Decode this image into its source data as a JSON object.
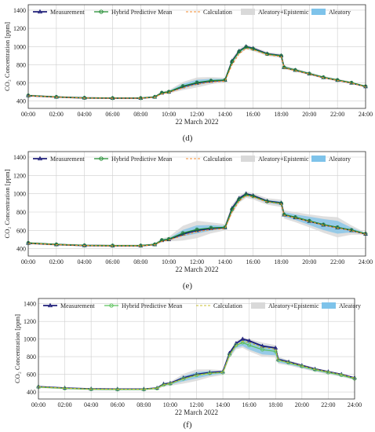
{
  "chart_data": [
    {
      "panel": "(d)",
      "type": "line",
      "xlabel": "22 March 2022",
      "ylabel": "CO₂ Concentration [ppm]",
      "xticks": [
        "00:00",
        "02:00",
        "04:00",
        "06:00",
        "08:00",
        "10:00",
        "12:00",
        "14:00",
        "16:00",
        "18:00",
        "20:00",
        "22:00",
        "24:00"
      ],
      "yticks": [
        400,
        600,
        800,
        1000,
        1200,
        1400
      ],
      "xlim": [
        0,
        24
      ],
      "ylim": [
        320,
        1460
      ],
      "grid": true,
      "legend": "top",
      "x": [
        0,
        2,
        4,
        6,
        8,
        9,
        9.5,
        10,
        11,
        12,
        13,
        14,
        14.5,
        15,
        15.5,
        16,
        17,
        18,
        18.2,
        19,
        20,
        21,
        22,
        23,
        24
      ],
      "series": [
        {
          "name": "Measurement",
          "values": [
            460,
            445,
            435,
            432,
            432,
            445,
            490,
            500,
            560,
            600,
            620,
            630,
            840,
            950,
            1000,
            980,
            920,
            900,
            770,
            740,
            700,
            660,
            630,
            600,
            560
          ]
        },
        {
          "name": "Hybrid Predictive Mean",
          "values": [
            462,
            446,
            436,
            433,
            433,
            446,
            492,
            502,
            565,
            605,
            625,
            632,
            835,
            945,
            995,
            975,
            918,
            898,
            772,
            742,
            702,
            662,
            632,
            602,
            562
          ]
        },
        {
          "name": "Calculation",
          "values": [
            458,
            444,
            434,
            431,
            431,
            443,
            480,
            495,
            545,
            585,
            610,
            620,
            800,
            920,
            980,
            965,
            910,
            890,
            765,
            735,
            697,
            657,
            627,
            597,
            557
          ]
        }
      ],
      "bands": [
        {
          "name": "Aleatory+Epistemic",
          "color": "#d9d9d9",
          "half_width": [
            10,
            10,
            10,
            10,
            10,
            10,
            14,
            18,
            45,
            55,
            40,
            25,
            35,
            30,
            25,
            25,
            22,
            22,
            20,
            18,
            16,
            15,
            14,
            12,
            10
          ]
        },
        {
          "name": "Aleatory",
          "color": "#7ec3ea",
          "half_width": [
            4,
            4,
            4,
            4,
            4,
            4,
            6,
            8,
            25,
            30,
            20,
            12,
            18,
            15,
            12,
            12,
            10,
            10,
            9,
            8,
            7,
            7,
            6,
            5,
            4
          ]
        }
      ]
    },
    {
      "panel": "(e)",
      "type": "line",
      "xlabel": "22 March 2022",
      "ylabel": "CO₂ Concentration [ppm]",
      "xticks": [
        "00:00",
        "02:00",
        "04:00",
        "06:00",
        "08:00",
        "10:00",
        "12:00",
        "14:00",
        "16:00",
        "18:00",
        "20:00",
        "22:00",
        "24:00"
      ],
      "yticks": [
        400,
        600,
        800,
        1000,
        1200,
        1400
      ],
      "xlim": [
        0,
        24
      ],
      "ylim": [
        320,
        1460
      ],
      "grid": true,
      "legend": "top",
      "x": [
        0,
        2,
        4,
        6,
        8,
        9,
        9.5,
        10,
        11,
        12,
        13,
        14,
        14.5,
        15,
        15.5,
        16,
        17,
        18,
        18.2,
        19,
        20,
        21,
        22,
        23,
        24
      ],
      "series": [
        {
          "name": "Measurement",
          "values": [
            460,
            445,
            435,
            432,
            432,
            445,
            490,
            500,
            560,
            600,
            620,
            630,
            840,
            950,
            1000,
            980,
            920,
            900,
            770,
            740,
            700,
            660,
            630,
            600,
            560
          ]
        },
        {
          "name": "Hybrid Predictive Mean",
          "values": [
            463,
            447,
            437,
            434,
            434,
            447,
            494,
            505,
            570,
            610,
            628,
            634,
            830,
            940,
            990,
            972,
            916,
            896,
            774,
            744,
            704,
            664,
            634,
            604,
            564
          ]
        },
        {
          "name": "Calculation",
          "values": [
            458,
            444,
            434,
            431,
            431,
            443,
            480,
            495,
            545,
            585,
            610,
            620,
            800,
            920,
            980,
            965,
            910,
            890,
            765,
            735,
            697,
            657,
            627,
            597,
            557
          ]
        }
      ],
      "bands": [
        {
          "name": "Aleatory+Epistemic",
          "color": "#d9d9d9",
          "half_width": [
            12,
            12,
            12,
            12,
            12,
            12,
            20,
            25,
            80,
            95,
            60,
            35,
            50,
            40,
            35,
            35,
            35,
            40,
            45,
            55,
            70,
            90,
            110,
            50,
            12
          ]
        },
        {
          "name": "Aleatory",
          "color": "#7ec3ea",
          "half_width": [
            5,
            5,
            5,
            5,
            5,
            5,
            8,
            10,
            35,
            45,
            30,
            15,
            25,
            20,
            15,
            15,
            15,
            20,
            25,
            30,
            45,
            60,
            70,
            25,
            5
          ]
        }
      ]
    },
    {
      "panel": "(f)",
      "type": "line",
      "xlabel": "22 March 2022",
      "ylabel": "CO₂ Concentration [ppm]",
      "xticks": [
        "00:00",
        "02:00",
        "04:00",
        "06:00",
        "08:00",
        "10:00",
        "12:00",
        "14:00",
        "16:00",
        "18:00",
        "20:00",
        "22:00",
        "24:00"
      ],
      "yticks": [
        400,
        600,
        800,
        1000,
        1200,
        1400
      ],
      "xlim": [
        0,
        24
      ],
      "ylim": [
        320,
        1460
      ],
      "grid": true,
      "legend": "top",
      "x": [
        0,
        2,
        4,
        6,
        8,
        9,
        9.5,
        10,
        11,
        12,
        13,
        14,
        14.5,
        15,
        15.5,
        16,
        17,
        18,
        18.2,
        19,
        20,
        21,
        22,
        23,
        24
      ],
      "series": [
        {
          "name": "Measurement",
          "values": [
            460,
            445,
            435,
            432,
            432,
            445,
            490,
            500,
            560,
            600,
            620,
            630,
            840,
            950,
            1000,
            980,
            920,
            900,
            770,
            740,
            700,
            660,
            630,
            600,
            560
          ]
        },
        {
          "name": "Hybrid Predictive Mean",
          "values": [
            455,
            440,
            430,
            428,
            428,
            440,
            480,
            492,
            550,
            590,
            612,
            620,
            820,
            930,
            960,
            930,
            880,
            860,
            760,
            730,
            690,
            650,
            620,
            590,
            550
          ]
        },
        {
          "name": "Calculation",
          "values": [
            458,
            443,
            433,
            431,
            431,
            443,
            482,
            496,
            548,
            588,
            610,
            622,
            815,
            925,
            975,
            960,
            905,
            885,
            762,
            734,
            696,
            656,
            626,
            596,
            556
          ]
        }
      ],
      "bands": [
        {
          "name": "Aleatory+Epistemic",
          "color": "#d9d9d9",
          "half_width": [
            10,
            10,
            10,
            10,
            10,
            10,
            18,
            22,
            55,
            65,
            45,
            28,
            40,
            45,
            60,
            70,
            80,
            70,
            40,
            30,
            25,
            22,
            20,
            18,
            14
          ]
        },
        {
          "name": "Aleatory",
          "color": "#7ec3ea",
          "half_width": [
            4,
            4,
            4,
            4,
            4,
            4,
            8,
            10,
            30,
            35,
            25,
            14,
            22,
            28,
            40,
            50,
            55,
            45,
            25,
            18,
            14,
            12,
            10,
            9,
            7
          ]
        }
      ]
    }
  ],
  "colors": {
    "measurement": "#1f1f7a",
    "hybrid": "#1e8a2e",
    "calculation": "#f28a2e",
    "calculation_f": "#c8c030",
    "hybrid_f": "#5cc25c",
    "grid": "#cfcfcf"
  }
}
